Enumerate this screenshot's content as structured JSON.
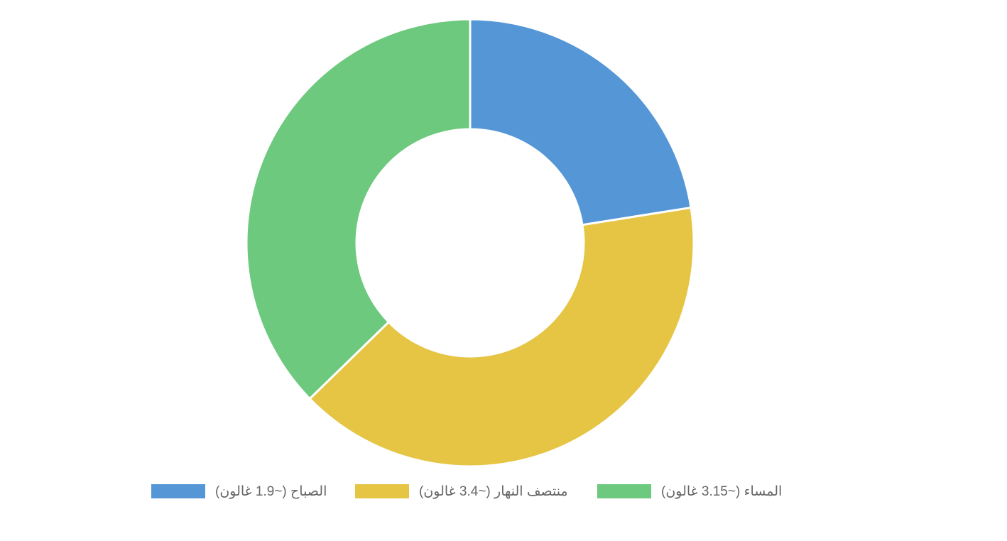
{
  "chart_data": {
    "type": "pie",
    "variant": "donut",
    "categories": [
      "الصباح (~1.9 غالون)",
      "منتصف النهار (~3.4 غالون)",
      "المساء (~3.15 غالون)"
    ],
    "series": [
      {
        "values": [
          1.9,
          3.4,
          3.15
        ]
      }
    ],
    "colors": [
      "#5597d6",
      "#e6c545",
      "#6cc97d"
    ],
    "legend_position": "bottom"
  }
}
